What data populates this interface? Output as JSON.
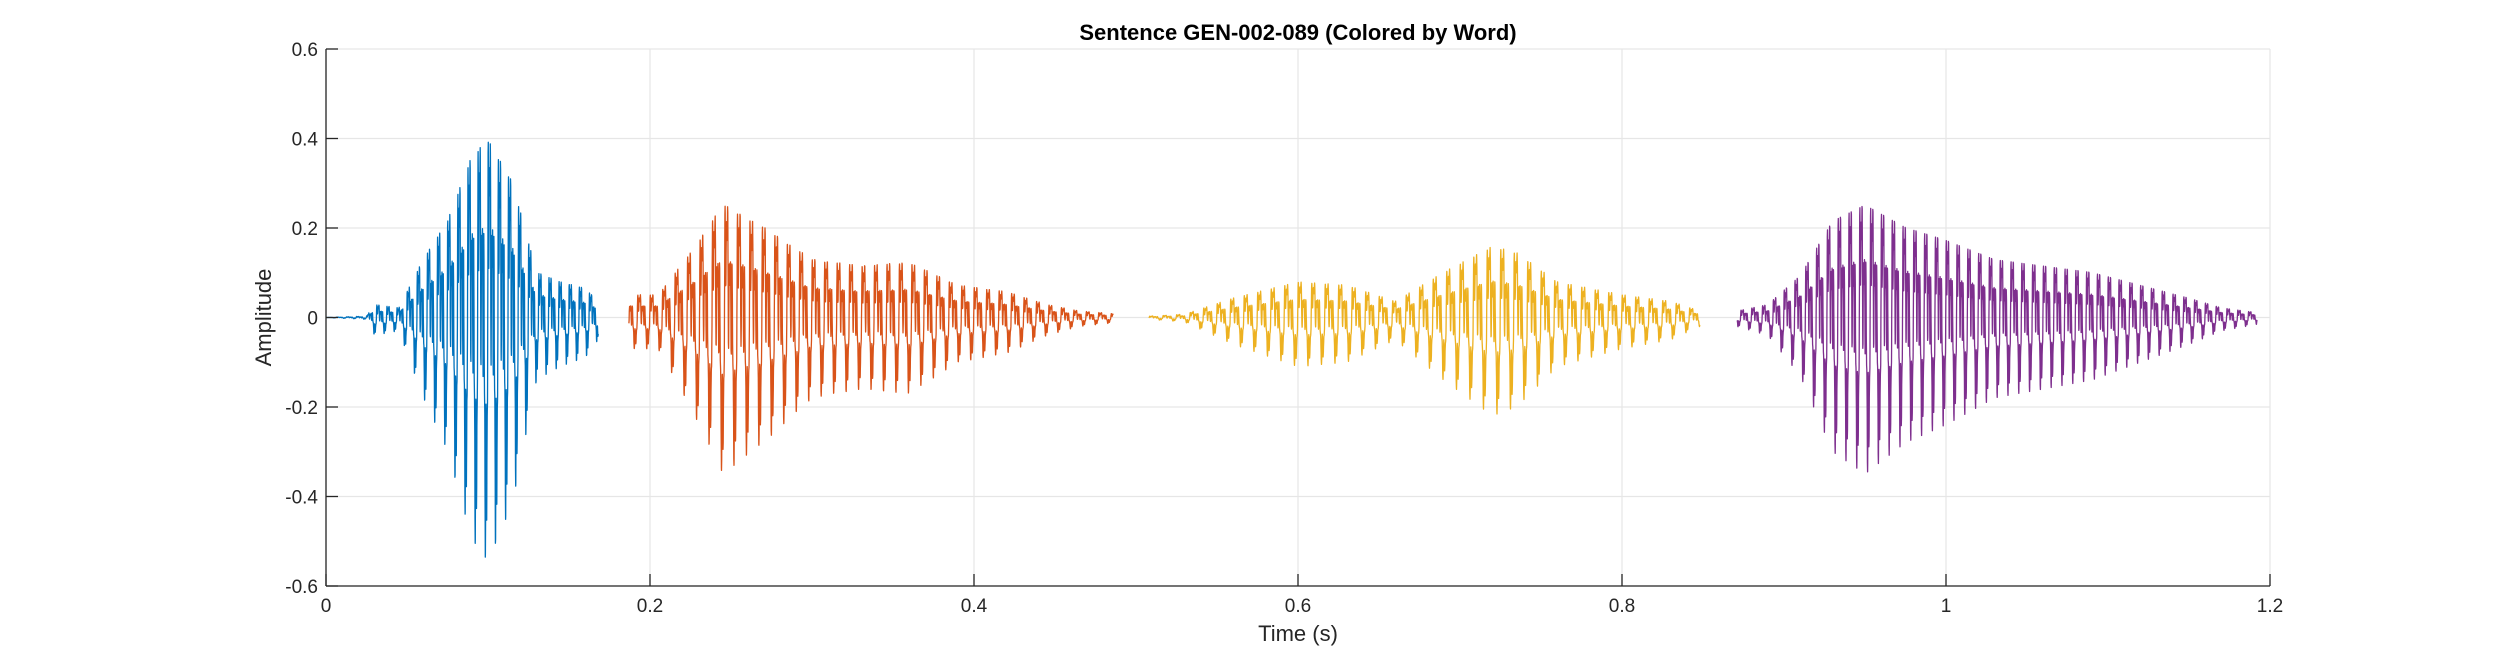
{
  "chart_data": {
    "type": "line",
    "title": "Sentence GEN-002-089 (Colored by Word)",
    "xlabel": "Time (s)",
    "ylabel": "Amplitude",
    "xlim": [
      0,
      1.2
    ],
    "ylim": [
      -0.6,
      0.6
    ],
    "xticks": [
      0,
      0.2,
      0.4,
      0.6,
      0.8,
      1,
      1.2
    ],
    "xtick_labels": [
      "0",
      "0.2",
      "0.4",
      "0.6",
      "0.8",
      "1",
      "1.2"
    ],
    "yticks": [
      -0.6,
      -0.4,
      -0.2,
      0,
      0.2,
      0.4,
      0.6
    ],
    "ytick_labels": [
      "-0.6",
      "-0.4",
      "-0.2",
      "0",
      "0.2",
      "0.4",
      "0.6"
    ],
    "grid": true,
    "legend": false,
    "series": [
      {
        "color": "#0072BD",
        "t_start": 0.0,
        "t_end": 0.168,
        "pitch_hz": 160,
        "envelope": [
          [
            0.0,
            0.0
          ],
          [
            0.025,
            0.004
          ],
          [
            0.03,
            0.04
          ],
          [
            0.045,
            0.03
          ],
          [
            0.06,
            0.18
          ],
          [
            0.075,
            0.3
          ],
          [
            0.09,
            0.5
          ],
          [
            0.1,
            0.55
          ],
          [
            0.115,
            0.42
          ],
          [
            0.13,
            0.14
          ],
          [
            0.145,
            0.11
          ],
          [
            0.16,
            0.09
          ],
          [
            0.168,
            0.05
          ]
        ]
      },
      {
        "color": "#D95319",
        "t_start": 0.187,
        "t_end": 0.486,
        "pitch_hz": 130,
        "envelope": [
          [
            0.187,
            0.07
          ],
          [
            0.205,
            0.07
          ],
          [
            0.225,
            0.2
          ],
          [
            0.245,
            0.35
          ],
          [
            0.27,
            0.28
          ],
          [
            0.3,
            0.18
          ],
          [
            0.33,
            0.16
          ],
          [
            0.36,
            0.17
          ],
          [
            0.39,
            0.1
          ],
          [
            0.42,
            0.08
          ],
          [
            0.445,
            0.04
          ],
          [
            0.465,
            0.02
          ],
          [
            0.486,
            0.012
          ]
        ]
      },
      {
        "color": "#EDB120",
        "t_start": 0.508,
        "t_end": 0.848,
        "pitch_hz": 120,
        "envelope": [
          [
            0.508,
            0.004
          ],
          [
            0.53,
            0.01
          ],
          [
            0.56,
            0.06
          ],
          [
            0.6,
            0.11
          ],
          [
            0.63,
            0.1
          ],
          [
            0.66,
            0.05
          ],
          [
            0.69,
            0.14
          ],
          [
            0.72,
            0.22
          ],
          [
            0.735,
            0.2
          ],
          [
            0.76,
            0.11
          ],
          [
            0.8,
            0.07
          ],
          [
            0.83,
            0.05
          ],
          [
            0.848,
            0.02
          ]
        ]
      },
      {
        "color": "#7E2F8E",
        "t_start": 0.871,
        "t_end": 1.192,
        "pitch_hz": 150,
        "envelope": [
          [
            0.871,
            0.02
          ],
          [
            0.89,
            0.04
          ],
          [
            0.91,
            0.13
          ],
          [
            0.93,
            0.3
          ],
          [
            0.95,
            0.35
          ],
          [
            0.975,
            0.28
          ],
          [
            1.0,
            0.24
          ],
          [
            1.03,
            0.18
          ],
          [
            1.06,
            0.16
          ],
          [
            1.09,
            0.14
          ],
          [
            1.12,
            0.1
          ],
          [
            1.15,
            0.06
          ],
          [
            1.17,
            0.03
          ],
          [
            1.192,
            0.015
          ]
        ]
      }
    ]
  }
}
